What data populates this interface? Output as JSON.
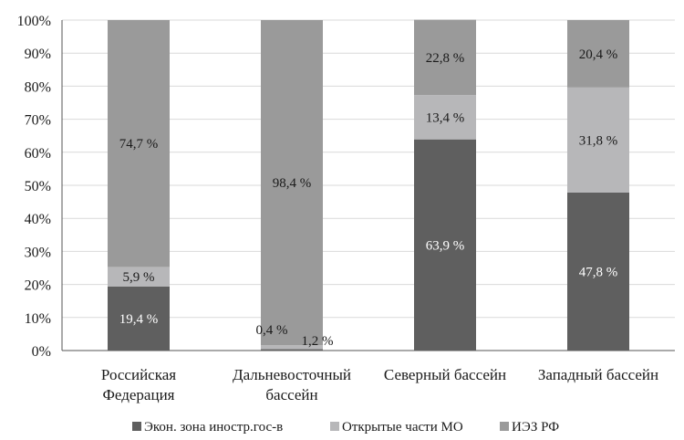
{
  "chart_data": {
    "type": "bar",
    "stacked": true,
    "percent": true,
    "categories": [
      [
        "Российская",
        "Федерация"
      ],
      [
        "Дальневосточный",
        "бассейн"
      ],
      [
        "Северный бассейн"
      ],
      [
        "Западный бассейн"
      ]
    ],
    "series": [
      {
        "name": "Экон. зона иностр.гос-в",
        "color": "#5f5f5f",
        "values": [
          19.4,
          0.4,
          63.9,
          47.8
        ],
        "labels": [
          "19,4 %",
          "0,4 %",
          "63,9 %",
          "47,8 %"
        ]
      },
      {
        "name": "Открытые части МО",
        "color": "#b7b7b9",
        "values": [
          5.9,
          1.2,
          13.4,
          31.8
        ],
        "labels": [
          "5,9 %",
          "1,2 %",
          "13,4 %",
          "31,8 %"
        ]
      },
      {
        "name": "ИЭЗ РФ",
        "color": "#9a9a9a",
        "values": [
          74.7,
          98.4,
          22.8,
          20.4
        ],
        "labels": [
          "74,7 %",
          "98,4 %",
          "22,8 %",
          "20,4 %"
        ]
      }
    ],
    "yticks": [
      "0%",
      "10%",
      "20%",
      "30%",
      "40%",
      "50%",
      "60%",
      "70%",
      "80%",
      "90%",
      "100%"
    ],
    "ylim": [
      0,
      100
    ],
    "grid": true,
    "legend": "bottom"
  }
}
